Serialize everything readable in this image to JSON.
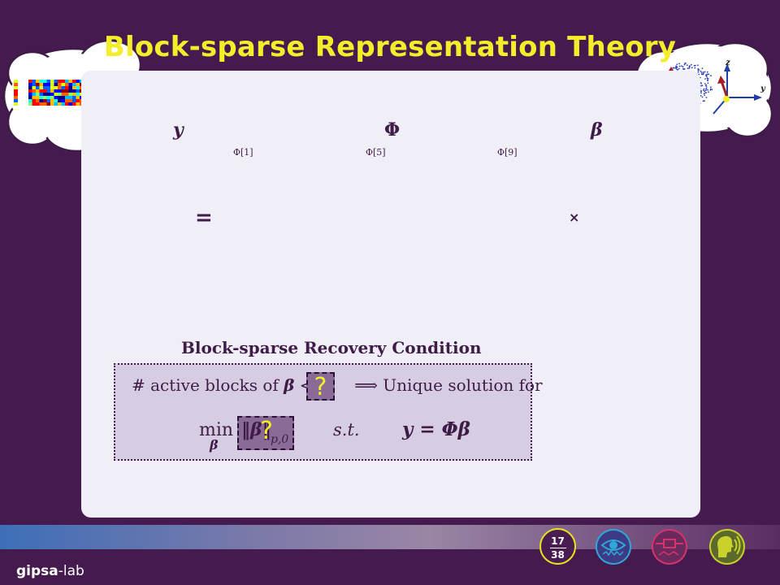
{
  "title": "Block-sparse Representation Theory",
  "labels": {
    "y": "y",
    "phi": "Φ",
    "beta": "β"
  },
  "block_labels": [
    "Φ[1]",
    "Φ[5]",
    "Φ[9]"
  ],
  "operators": {
    "equals": "=",
    "times": "×"
  },
  "beta_cell_text": "?",
  "condition": {
    "title": "Block-sparse Recovery Condition",
    "line1_prefix": "# active blocks of ",
    "line1_beta": "β",
    "line1_lt": "<",
    "line1_suffix": "⟹ Unique solution for",
    "qmark": "?",
    "min_label": "min",
    "min_sub": "β",
    "norm_text": "‖β‖",
    "norm_sub": "p,0",
    "st": "s.t.",
    "equation": "y = Φβ"
  },
  "footer": {
    "logo_bold": "gipsa",
    "logo_light": "-lab",
    "page_current": "17",
    "page_total": "38"
  },
  "icons": [
    "thought-cloud-matrix-icon",
    "thought-cloud-brain-icon",
    "eye-icon",
    "circuit-icon",
    "speaking-head-icon"
  ],
  "colors": {
    "background": "#451a4f",
    "title": "#f4ee2a",
    "panel": "#f0eef7",
    "accent": "#e6e21c"
  }
}
